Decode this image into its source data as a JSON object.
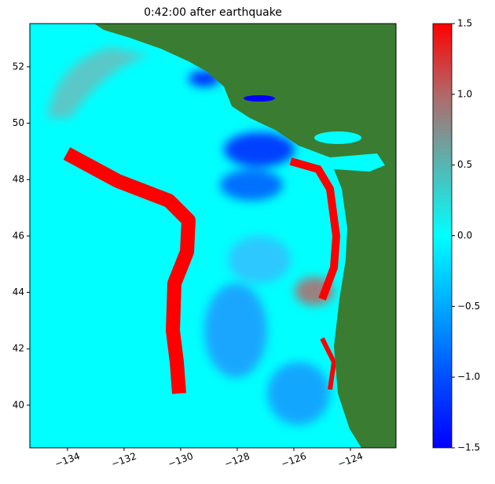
{
  "chart_data": {
    "type": "heatmap",
    "title": "0:42:00 after earthquake",
    "xlim": [
      -135.33,
      -122.39
    ],
    "xticks": [
      {
        "value": -134,
        "label": "−134"
      },
      {
        "value": -132,
        "label": "−132"
      },
      {
        "value": -130,
        "label": "−130"
      },
      {
        "value": -128,
        "label": "−128"
      },
      {
        "value": -126,
        "label": "−126"
      },
      {
        "value": -124,
        "label": "−124"
      }
    ],
    "ylim": [
      38.49,
      53.53
    ],
    "yticks": [
      40,
      42,
      44,
      46,
      48,
      50,
      52
    ],
    "colorbar": {
      "lim": [
        -1.5,
        1.5
      ],
      "ticks": [
        {
          "value": -1.5,
          "label": "−1.5"
        },
        {
          "value": -1.0,
          "label": "−1.0"
        },
        {
          "value": -0.5,
          "label": "−0.5"
        },
        {
          "value": 0.0,
          "label": "0.0"
        },
        0.5,
        {
          "value": 1.0,
          "label": "1.0"
        },
        1.5
      ]
    }
  }
}
